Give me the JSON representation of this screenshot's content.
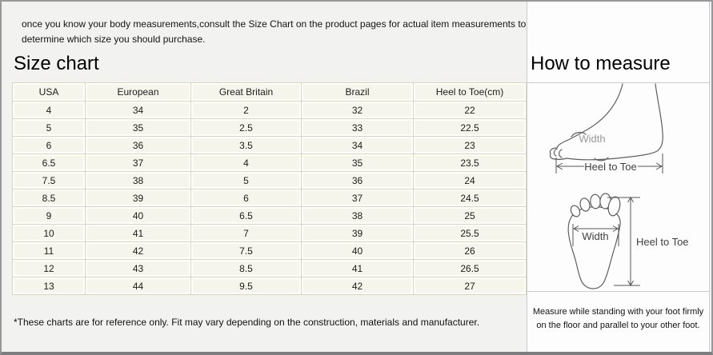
{
  "header_note": {
    "line1": "once you know your body measurements,consult the Size Chart on the product pages for actual item measurements to",
    "line2": "determine which size you should purchase."
  },
  "size_chart": {
    "title": "Size chart",
    "table": {
      "columns": [
        "USA",
        "European",
        "Great Britain",
        "Brazil",
        "Heel to Toe(cm)"
      ],
      "rows": [
        [
          "4",
          "34",
          "2",
          "32",
          "22"
        ],
        [
          "5",
          "35",
          "2.5",
          "33",
          "22.5"
        ],
        [
          "6",
          "36",
          "3.5",
          "34",
          "23"
        ],
        [
          "6.5",
          "37",
          "4",
          "35",
          "23.5"
        ],
        [
          "7.5",
          "38",
          "5",
          "36",
          "24"
        ],
        [
          "8.5",
          "39",
          "6",
          "37",
          "24.5"
        ],
        [
          "9",
          "40",
          "6.5",
          "38",
          "25"
        ],
        [
          "10",
          "41",
          "7",
          "39",
          "25.5"
        ],
        [
          "11",
          "42",
          "7.5",
          "40",
          "26"
        ],
        [
          "12",
          "43",
          "8.5",
          "41",
          "26.5"
        ],
        [
          "13",
          "44",
          "9.5",
          "42",
          "27"
        ]
      ]
    },
    "footnote": "*These charts are for reference only. Fit may vary depending on the construction, materials and manufacturer."
  },
  "how_to_measure": {
    "title": "How to measure",
    "side_diagram": {
      "width_label": "Width",
      "heel_to_toe_label": "Heel to Toe"
    },
    "sole_diagram": {
      "width_label": "Width",
      "heel_to_toe_label": "Heel to Toe"
    },
    "note_line1": "Measure while standing with your foot firmly",
    "note_line2": "on the floor and parallel to your other foot."
  },
  "colors": {
    "page_background": "#f2f2f1",
    "panel_background": "#fdfdfd",
    "table_cell_background": "#f6f5ec",
    "table_grid": "#d8d7ba",
    "outer_border": "#98989b",
    "diagram_stroke": "#5f5f5f"
  }
}
